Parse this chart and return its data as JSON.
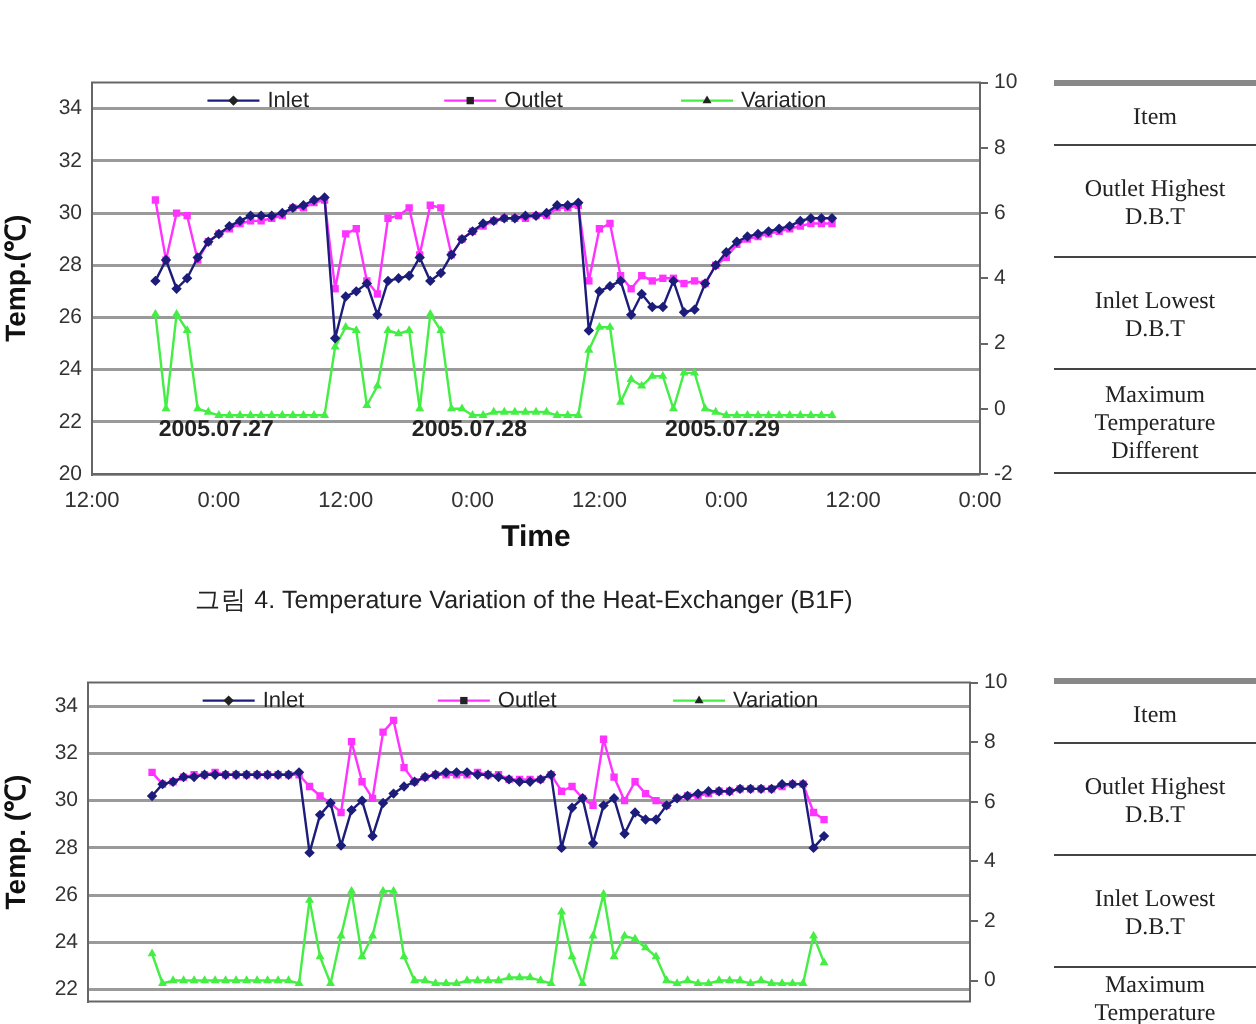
{
  "chart_data": [
    {
      "type": "line",
      "title": "그림 4. Temperature Variation of the Heat-Exchanger (B1F)",
      "xlabel": "Time",
      "ylabel": "Temp.(℃)",
      "x": [
        "2005-07-26T18:00",
        "2005-07-26T19:00",
        "2005-07-26T20:00",
        "2005-07-26T21:00",
        "2005-07-26T22:00",
        "2005-07-26T23:00",
        "2005-07-27T00:00",
        "2005-07-27T01:00",
        "2005-07-27T02:00",
        "2005-07-27T03:00",
        "2005-07-27T04:00",
        "2005-07-27T05:00",
        "2005-07-27T06:00",
        "2005-07-27T07:00",
        "2005-07-27T08:00",
        "2005-07-27T09:00",
        "2005-07-27T10:00",
        "2005-07-27T11:00",
        "2005-07-27T12:00",
        "2005-07-27T13:00",
        "2005-07-27T14:00",
        "2005-07-27T15:00",
        "2005-07-27T16:00",
        "2005-07-27T17:00",
        "2005-07-27T18:00",
        "2005-07-27T19:00",
        "2005-07-27T20:00",
        "2005-07-27T21:00",
        "2005-07-27T22:00",
        "2005-07-27T23:00",
        "2005-07-28T00:00",
        "2005-07-28T01:00",
        "2005-07-28T02:00",
        "2005-07-28T03:00",
        "2005-07-28T04:00",
        "2005-07-28T05:00",
        "2005-07-28T06:00",
        "2005-07-28T07:00",
        "2005-07-28T08:00",
        "2005-07-28T09:00",
        "2005-07-28T10:00",
        "2005-07-28T11:00",
        "2005-07-28T12:00",
        "2005-07-28T13:00",
        "2005-07-28T14:00",
        "2005-07-28T15:00",
        "2005-07-28T16:00",
        "2005-07-28T17:00",
        "2005-07-28T18:00",
        "2005-07-28T19:00",
        "2005-07-28T20:00",
        "2005-07-28T21:00",
        "2005-07-28T22:00",
        "2005-07-28T23:00",
        "2005-07-29T00:00",
        "2005-07-29T01:00",
        "2005-07-29T02:00",
        "2005-07-29T03:00",
        "2005-07-29T04:00",
        "2005-07-29T05:00",
        "2005-07-29T06:00",
        "2005-07-29T07:00",
        "2005-07-29T08:00",
        "2005-07-29T09:00",
        "2005-07-29T10:00"
      ],
      "xlim": [
        "2005-07-26T12:00",
        "2005-07-30T00:00"
      ],
      "xticks": [
        {
          "value": "2005-07-26T12:00",
          "label": "12:00"
        },
        {
          "value": "2005-07-27T00:00",
          "label": "0:00"
        },
        {
          "value": "2005-07-27T12:00",
          "label": "12:00"
        },
        {
          "value": "2005-07-28T00:00",
          "label": "0:00"
        },
        {
          "value": "2005-07-28T12:00",
          "label": "12:00"
        },
        {
          "value": "2005-07-29T00:00",
          "label": "0:00"
        },
        {
          "value": "2005-07-29T12:00",
          "label": "12:00"
        },
        {
          "value": "2005-07-30T00:00",
          "label": "0:00"
        }
      ],
      "ylim": [
        20,
        35
      ],
      "yticks": [
        20,
        22,
        24,
        26,
        28,
        30,
        32,
        34
      ],
      "y2lim": [
        -2,
        10
      ],
      "y2ticks": [
        -2,
        0,
        2,
        4,
        6,
        8,
        10
      ],
      "grid": "y",
      "legend": "top",
      "series": [
        {
          "name": "Inlet",
          "color": "#1c1c7a",
          "marker": "diamond",
          "values": [
            27.4,
            28.2,
            27.1,
            27.5,
            28.3,
            28.9,
            29.2,
            29.5,
            29.7,
            29.9,
            29.9,
            29.9,
            30.0,
            30.2,
            30.3,
            30.5,
            30.6,
            25.2,
            26.8,
            27.0,
            27.3,
            26.1,
            27.4,
            27.5,
            27.6,
            28.3,
            27.4,
            27.7,
            28.4,
            29.0,
            29.3,
            29.6,
            29.7,
            29.8,
            29.8,
            29.9,
            29.9,
            30.0,
            30.3,
            30.3,
            30.4,
            25.5,
            27.0,
            27.2,
            27.4,
            26.1,
            26.9,
            26.4,
            26.4,
            27.4,
            26.2,
            26.3,
            27.3,
            28.0,
            28.5,
            28.9,
            29.1,
            29.2,
            29.3,
            29.4,
            29.5,
            29.7,
            29.8,
            29.8,
            29.8
          ]
        },
        {
          "name": "Outlet",
          "color": "#ff33ff",
          "marker": "square",
          "values": [
            30.5,
            28.2,
            30.0,
            29.9,
            28.2,
            28.9,
            29.2,
            29.4,
            29.6,
            29.7,
            29.7,
            29.8,
            29.9,
            30.2,
            30.2,
            30.4,
            30.5,
            27.1,
            29.2,
            29.4,
            27.4,
            26.9,
            29.8,
            29.9,
            30.2,
            28.4,
            30.3,
            30.2,
            28.4,
            29.0,
            29.3,
            29.5,
            29.7,
            29.8,
            29.8,
            29.8,
            29.9,
            29.9,
            30.2,
            30.2,
            30.3,
            27.4,
            29.4,
            29.6,
            27.6,
            27.1,
            27.6,
            27.4,
            27.5,
            27.5,
            27.3,
            27.4,
            27.3,
            28.0,
            28.3,
            28.8,
            29.0,
            29.1,
            29.2,
            29.3,
            29.4,
            29.5,
            29.6,
            29.6,
            29.6
          ]
        },
        {
          "name": "Variation",
          "color": "#44ee44",
          "marker": "triangle",
          "axis": "y2",
          "values": [
            2.9,
            0.0,
            2.9,
            2.4,
            0.0,
            -0.1,
            -0.2,
            -0.2,
            -0.2,
            -0.2,
            -0.2,
            -0.2,
            -0.2,
            -0.2,
            -0.2,
            -0.2,
            -0.2,
            1.9,
            2.5,
            2.4,
            0.1,
            0.7,
            2.4,
            2.3,
            2.4,
            0.0,
            2.9,
            2.4,
            0.0,
            0.0,
            -0.2,
            -0.2,
            -0.1,
            -0.1,
            -0.1,
            -0.1,
            -0.1,
            -0.1,
            -0.2,
            -0.2,
            -0.2,
            1.8,
            2.5,
            2.5,
            0.2,
            0.9,
            0.7,
            1.0,
            1.0,
            0.0,
            1.1,
            1.1,
            0.0,
            -0.1,
            -0.2,
            -0.2,
            -0.2,
            -0.2,
            -0.2,
            -0.2,
            -0.2,
            -0.2,
            -0.2,
            -0.2,
            -0.2
          ]
        }
      ],
      "annotations": [
        "2005.07.27",
        "2005.07.28",
        "2005.07.29"
      ]
    },
    {
      "type": "other",
      "annotations": [
        "Item",
        "Outlet Highest D.B.T",
        "Inlet Lowest D.B.T",
        "Maximum Temperature Different"
      ]
    },
    {
      "type": "line",
      "ylabel": "Temp. (℃)",
      "categories": [
        null,
        null,
        null,
        null,
        null,
        null,
        null,
        null,
        null,
        null,
        null,
        null,
        null,
        null,
        null,
        null,
        null,
        null,
        null,
        null,
        null,
        null,
        null,
        null,
        null,
        null,
        null,
        null,
        null,
        null,
        null,
        null,
        null,
        null,
        null,
        null,
        null,
        null,
        null,
        null,
        null,
        null,
        null,
        null,
        null,
        null,
        null,
        null,
        null,
        null,
        null,
        null,
        null,
        null,
        null,
        null,
        null,
        null,
        null,
        null,
        null,
        null,
        null,
        null,
        null
      ],
      "ylim": [
        21.5,
        35
      ],
      "yticks": [
        22,
        24,
        26,
        28,
        30,
        32,
        34
      ],
      "y2lim": [
        -0.7,
        10
      ],
      "y2ticks": [
        0,
        2,
        4,
        6,
        8,
        10
      ],
      "grid": "y",
      "legend": "top",
      "tick_labels": "y",
      "series": [
        {
          "name": "Inlet",
          "color": "#1c1c7a",
          "marker": "diamond",
          "values": [
            30.2,
            30.7,
            30.8,
            31.0,
            31.0,
            31.1,
            31.1,
            31.1,
            31.1,
            31.1,
            31.1,
            31.1,
            31.1,
            31.1,
            31.2,
            27.8,
            29.4,
            29.9,
            28.1,
            29.6,
            30.0,
            28.5,
            29.9,
            30.3,
            30.6,
            30.8,
            31.0,
            31.1,
            31.2,
            31.2,
            31.2,
            31.1,
            31.1,
            31.0,
            30.9,
            30.8,
            30.8,
            30.9,
            31.1,
            28.0,
            29.7,
            30.1,
            28.2,
            29.8,
            30.1,
            28.6,
            29.5,
            29.2,
            29.2,
            29.8,
            30.1,
            30.2,
            30.3,
            30.4,
            30.4,
            30.4,
            30.5,
            30.5,
            30.5,
            30.5,
            30.7,
            30.7,
            30.7,
            28.0,
            28.5
          ]
        },
        {
          "name": "Outlet",
          "color": "#ff33ff",
          "marker": "square",
          "values": [
            31.2,
            30.7,
            30.8,
            31.0,
            31.1,
            31.1,
            31.2,
            31.1,
            31.1,
            31.1,
            31.1,
            31.1,
            31.1,
            31.1,
            31.1,
            30.6,
            30.2,
            29.9,
            29.5,
            32.5,
            30.8,
            30.1,
            32.9,
            33.4,
            31.4,
            30.8,
            31.0,
            31.1,
            31.1,
            31.1,
            31.1,
            31.2,
            31.1,
            31.1,
            30.9,
            30.9,
            30.9,
            30.9,
            31.1,
            30.4,
            30.6,
            30.1,
            29.8,
            32.6,
            31.0,
            30.0,
            30.8,
            30.3,
            30.0,
            29.8,
            30.1,
            30.2,
            30.2,
            30.3,
            30.4,
            30.4,
            30.5,
            30.5,
            30.5,
            30.5,
            30.6,
            30.7,
            30.7,
            29.5,
            29.2
          ]
        },
        {
          "name": "Variation",
          "color": "#44ee44",
          "marker": "triangle",
          "axis": "y2",
          "values": [
            0.9,
            -0.1,
            0.0,
            0.0,
            0.0,
            0.0,
            0.0,
            0.0,
            0.0,
            0.0,
            0.0,
            0.0,
            0.0,
            0.0,
            -0.1,
            2.7,
            0.8,
            -0.1,
            1.5,
            3.0,
            0.8,
            1.5,
            3.0,
            3.0,
            0.8,
            0.0,
            0.0,
            -0.1,
            -0.1,
            -0.1,
            0.0,
            0.0,
            0.0,
            0.0,
            0.1,
            0.1,
            0.1,
            0.0,
            -0.1,
            2.3,
            0.8,
            -0.1,
            1.5,
            2.9,
            0.8,
            1.5,
            1.4,
            1.1,
            0.8,
            0.0,
            -0.1,
            0.0,
            -0.1,
            -0.1,
            0.0,
            0.0,
            0.0,
            -0.1,
            0.0,
            -0.1,
            -0.1,
            -0.1,
            -0.1,
            1.5,
            0.6
          ]
        }
      ]
    },
    {
      "type": "other",
      "annotations": [
        "Item",
        "Outlet Highest D.B.T",
        "Inlet Lowest D.B.T",
        "Maximum Temperature"
      ]
    }
  ]
}
